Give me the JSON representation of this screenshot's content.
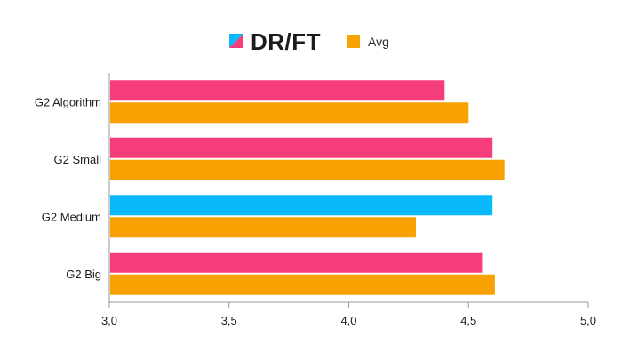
{
  "chart_data": {
    "type": "bar",
    "orientation": "horizontal",
    "categories": [
      "G2 Algorithm",
      "G2 Small",
      "G2 Medium",
      "G2 Big"
    ],
    "series": [
      {
        "name": "DRIFT",
        "values": [
          4.4,
          4.6,
          4.6,
          4.56
        ],
        "colors": [
          "#f53d7a",
          "#f53d7a",
          "#0ab9fa",
          "#f53d7a"
        ]
      },
      {
        "name": "Avg",
        "values": [
          4.5,
          4.65,
          4.28,
          4.61
        ],
        "color": "#f7a200"
      }
    ],
    "xlim": [
      3.0,
      5.0
    ],
    "x_ticks": [
      3.0,
      3.5,
      4.0,
      4.5,
      5.0
    ],
    "x_tick_labels": [
      "3,0",
      "3,5",
      "4,0",
      "4,5",
      "5,0"
    ],
    "grid": false,
    "legend": "top-center",
    "legend_brand_text": "DR/FT",
    "legend_icon_colors": [
      "#0ab9fa",
      "#f53d7a"
    ]
  }
}
